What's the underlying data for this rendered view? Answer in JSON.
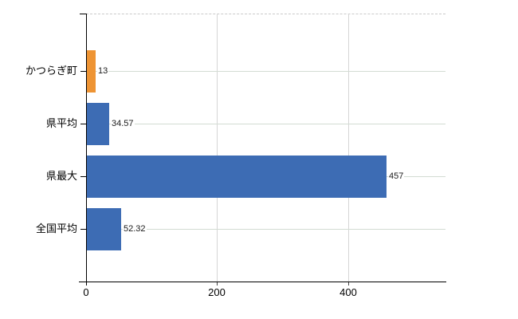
{
  "chart_data": {
    "type": "bar",
    "orientation": "horizontal",
    "title": "",
    "xlabel": "",
    "ylabel": "",
    "categories": [
      "かつらぎ町",
      "県平均",
      "県最大",
      "全国平均"
    ],
    "values": [
      13,
      34.57,
      457,
      52.32
    ],
    "value_labels": [
      "13",
      "34.57",
      "457",
      "52.32"
    ],
    "bar_colors": [
      "#ee9434",
      "#3d6cb4",
      "#3d6cb4",
      "#3d6cb4"
    ],
    "xlim": [
      0,
      550
    ],
    "x_ticks": [
      0,
      200,
      400
    ],
    "x_tick_labels": [
      "0",
      "200",
      "400"
    ],
    "grid": true,
    "legend": null,
    "colors": {
      "background": "#ffffff",
      "axis_line": "#000000",
      "category_gridline": "#d3dcd3",
      "value_gridline": "#d6d6d6",
      "top_border": "#c9c9c9",
      "label_text": "#000000",
      "value_text": "#1a1a1a"
    }
  }
}
